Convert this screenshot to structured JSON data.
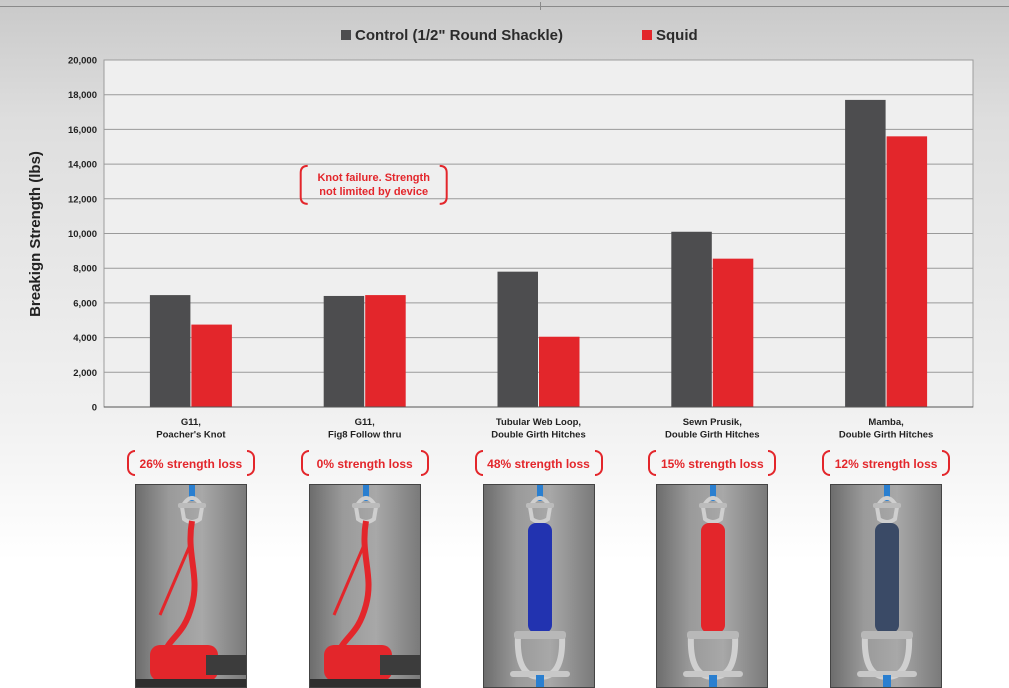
{
  "chart_data": {
    "type": "bar",
    "title": "",
    "ylabel": "Breakign Strength (lbs)",
    "xlabel": "",
    "ylim": [
      0,
      20000
    ],
    "yticks": [
      "0",
      "2,000",
      "4,000",
      "6,000",
      "8,000",
      "10,000",
      "12,000",
      "14,000",
      "16,000",
      "18,000",
      "20,000"
    ],
    "ytick_values": [
      0,
      2000,
      4000,
      6000,
      8000,
      10000,
      12000,
      14000,
      16000,
      18000,
      20000
    ],
    "grid": true,
    "legend_position": "top-center",
    "categories": [
      [
        "G11,",
        "Poacher's Knot"
      ],
      [
        "G11,",
        "Fig8 Follow thru"
      ],
      [
        "Tubular Web Loop,",
        "Double Girth Hitches"
      ],
      [
        "Sewn Prusik,",
        "Double Girth Hitches"
      ],
      [
        "Mamba,",
        "Double Girth Hitches"
      ]
    ],
    "series": [
      {
        "name": "Control (1/2\" Round Shackle)",
        "color": "#4d4d4f",
        "values": [
          6450,
          6400,
          7800,
          10100,
          17700
        ]
      },
      {
        "name": "Squid",
        "color": "#e3262b",
        "values": [
          4750,
          6450,
          4050,
          8550,
          15600
        ]
      }
    ],
    "annotations": [
      {
        "lines": [
          "Knot failure. Strength",
          "not limited by device"
        ],
        "category": 1,
        "value": 12800
      }
    ]
  },
  "strength_loss": [
    "26% strength loss",
    "0% strength loss",
    "48% strength loss",
    "15% strength loss",
    "12% strength loss"
  ],
  "photos": [
    {
      "name": "g11-poachers-knot-photo",
      "rope_color": "#e3262b",
      "sling_color": "#e3262b"
    },
    {
      "name": "g11-fig8-photo",
      "rope_color": "#e3262b",
      "sling_color": "#e3262b"
    },
    {
      "name": "tubular-web-loop-photo",
      "rope_color": "#2a7fd0",
      "sling_color": "#2233b0"
    },
    {
      "name": "sewn-prusik-photo",
      "rope_color": "#2a7fd0",
      "sling_color": "#e3262b"
    },
    {
      "name": "mamba-photo",
      "rope_color": "#2a7fd0",
      "sling_color": "#3a4a66"
    }
  ]
}
